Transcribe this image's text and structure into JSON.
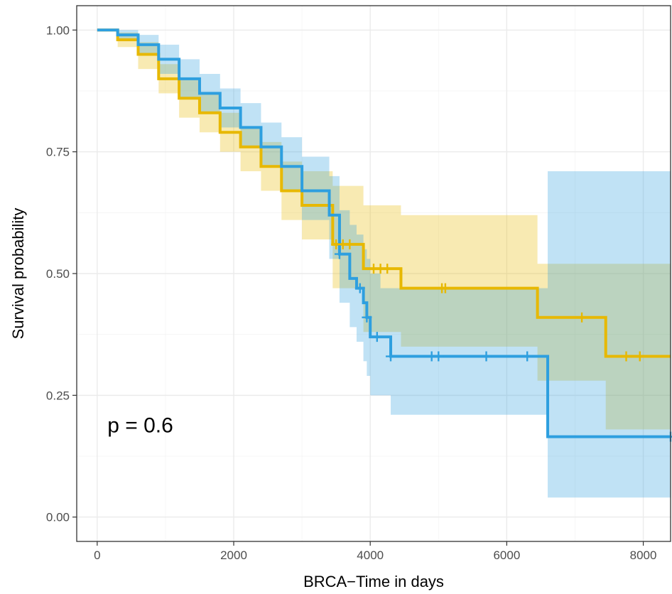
{
  "chart_data": {
    "type": "line",
    "subtype": "kaplan-meier survival curve with confidence bands",
    "xlabel": "BRCA−Time in days",
    "ylabel": "Survival probability",
    "xlim": [
      -300,
      8400
    ],
    "ylim": [
      -0.05,
      1.05
    ],
    "x_ticks": [
      0,
      2000,
      4000,
      6000,
      8000
    ],
    "x_tick_labels": [
      "0",
      "2000",
      "4000",
      "6000",
      "8000"
    ],
    "y_ticks": [
      0,
      0.25,
      0.5,
      0.75,
      1.0
    ],
    "y_tick_labels": [
      "0.00",
      "0.25",
      "0.50",
      "0.75",
      "1.00"
    ],
    "grid": true,
    "annotation": {
      "text": "p = 0.6",
      "x": 150,
      "y": 0.19
    },
    "series": [
      {
        "color": "#E7B800",
        "fill_color": "#E7B800",
        "x": [
          0,
          300,
          600,
          900,
          1200,
          1500,
          1800,
          2100,
          2400,
          2700,
          3000,
          3450,
          3900,
          4000,
          4450,
          6450,
          7450,
          8400
        ],
        "y": [
          1.0,
          0.98,
          0.95,
          0.9,
          0.86,
          0.83,
          0.79,
          0.76,
          0.72,
          0.67,
          0.64,
          0.56,
          0.51,
          0.51,
          0.47,
          0.41,
          0.33,
          0.33
        ],
        "ci_upper": [
          1.0,
          0.995,
          0.975,
          0.93,
          0.9,
          0.87,
          0.83,
          0.8,
          0.77,
          0.73,
          0.71,
          0.68,
          0.64,
          0.64,
          0.62,
          0.52,
          0.52,
          0.52
        ],
        "ci_lower": [
          1.0,
          0.965,
          0.92,
          0.87,
          0.82,
          0.79,
          0.75,
          0.71,
          0.67,
          0.61,
          0.57,
          0.47,
          0.38,
          0.38,
          0.35,
          0.28,
          0.18,
          0.18
        ],
        "censor_x": [
          3500,
          3600,
          3700,
          4050,
          4150,
          4250,
          5050,
          5100,
          7100,
          7750,
          7950
        ],
        "censor_y": [
          0.56,
          0.56,
          0.56,
          0.51,
          0.51,
          0.51,
          0.47,
          0.47,
          0.41,
          0.33,
          0.33
        ]
      },
      {
        "color": "#2E9FDF",
        "fill_color": "#2E9FDF",
        "x": [
          0,
          300,
          600,
          900,
          1200,
          1500,
          1800,
          2100,
          2400,
          2700,
          3000,
          3400,
          3550,
          3700,
          3800,
          3900,
          3950,
          4000,
          4150,
          4300,
          6600,
          8400
        ],
        "y": [
          1.0,
          0.99,
          0.97,
          0.94,
          0.9,
          0.87,
          0.84,
          0.8,
          0.76,
          0.72,
          0.67,
          0.62,
          0.54,
          0.49,
          0.47,
          0.44,
          0.41,
          0.37,
          0.37,
          0.33,
          0.165,
          0.165
        ],
        "ci_upper": [
          1.0,
          1.0,
          0.99,
          0.97,
          0.94,
          0.91,
          0.88,
          0.85,
          0.81,
          0.78,
          0.74,
          0.7,
          0.63,
          0.6,
          0.58,
          0.55,
          0.53,
          0.5,
          0.47,
          0.47,
          0.71,
          0.71
        ],
        "ci_lower": [
          1.0,
          0.98,
          0.95,
          0.91,
          0.86,
          0.83,
          0.8,
          0.76,
          0.72,
          0.67,
          0.61,
          0.53,
          0.44,
          0.39,
          0.36,
          0.32,
          0.29,
          0.25,
          0.25,
          0.21,
          0.04,
          0.04
        ],
        "censor_x": [
          3550,
          3850,
          3950,
          4100,
          4300,
          4900,
          5000,
          5700,
          6300,
          8400
        ],
        "censor_y": [
          0.54,
          0.47,
          0.41,
          0.37,
          0.33,
          0.33,
          0.33,
          0.33,
          0.33,
          0.165
        ]
      }
    ]
  }
}
